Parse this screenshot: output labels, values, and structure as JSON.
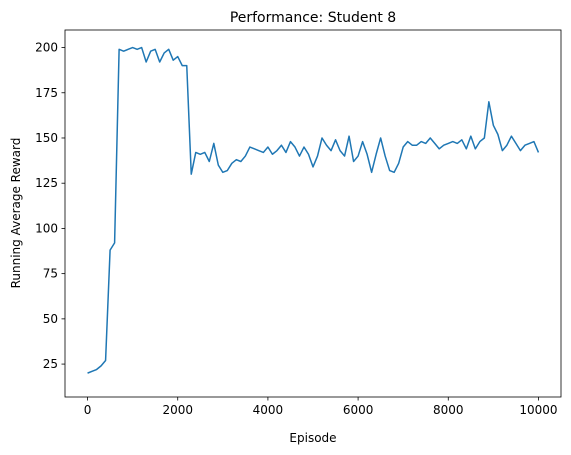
{
  "chart_data": {
    "type": "line",
    "title": "Performance: Student 8",
    "xlabel": "Episode",
    "ylabel": "Running Average Reward",
    "color": "#1f77b4",
    "x": [
      0,
      100,
      200,
      300,
      400,
      500,
      600,
      700,
      800,
      900,
      1000,
      1100,
      1200,
      1300,
      1400,
      1500,
      1600,
      1700,
      1800,
      1900,
      2000,
      2100,
      2200,
      2300,
      2400,
      2500,
      2600,
      2700,
      2800,
      2900,
      3000,
      3100,
      3200,
      3300,
      3400,
      3500,
      3600,
      3700,
      3800,
      3900,
      4000,
      4100,
      4200,
      4300,
      4400,
      4500,
      4600,
      4700,
      4800,
      4900,
      5000,
      5100,
      5200,
      5300,
      5400,
      5500,
      5600,
      5700,
      5800,
      5900,
      6000,
      6100,
      6200,
      6300,
      6400,
      6500,
      6600,
      6700,
      6800,
      6900,
      7000,
      7100,
      7200,
      7300,
      7400,
      7500,
      7600,
      7700,
      7800,
      7900,
      8000,
      8100,
      8200,
      8300,
      8400,
      8500,
      8600,
      8700,
      8800,
      8900,
      9000,
      9100,
      9200,
      9300,
      9400,
      9500,
      9600,
      9700,
      9800,
      9900,
      10000
    ],
    "values": [
      20,
      21,
      22,
      24,
      27,
      88,
      92,
      199,
      198,
      199,
      200,
      199,
      200,
      192,
      198,
      199,
      192,
      197,
      199,
      193,
      195,
      190,
      190,
      130,
      142,
      141,
      142,
      137,
      147,
      135,
      131,
      132,
      136,
      138,
      137,
      140,
      145,
      144,
      143,
      142,
      145,
      141,
      143,
      146,
      142,
      148,
      145,
      140,
      145,
      141,
      134,
      140,
      150,
      146,
      143,
      149,
      143,
      140,
      151,
      137,
      140,
      148,
      141,
      131,
      141,
      150,
      140,
      132,
      131,
      136,
      145,
      148,
      146,
      146,
      148,
      147,
      150,
      147,
      144,
      146,
      147,
      148,
      147,
      149,
      144,
      151,
      144,
      148,
      150,
      170,
      157,
      152,
      143,
      146,
      151,
      147,
      143,
      146,
      147,
      148,
      142
    ],
    "xlim": [
      -500,
      10500
    ],
    "ylim": [
      6.8,
      209.7
    ],
    "xticks": [
      0,
      2000,
      4000,
      6000,
      8000,
      10000
    ],
    "yticks": [
      25,
      50,
      75,
      100,
      125,
      150,
      175,
      200
    ],
    "grid": false
  }
}
